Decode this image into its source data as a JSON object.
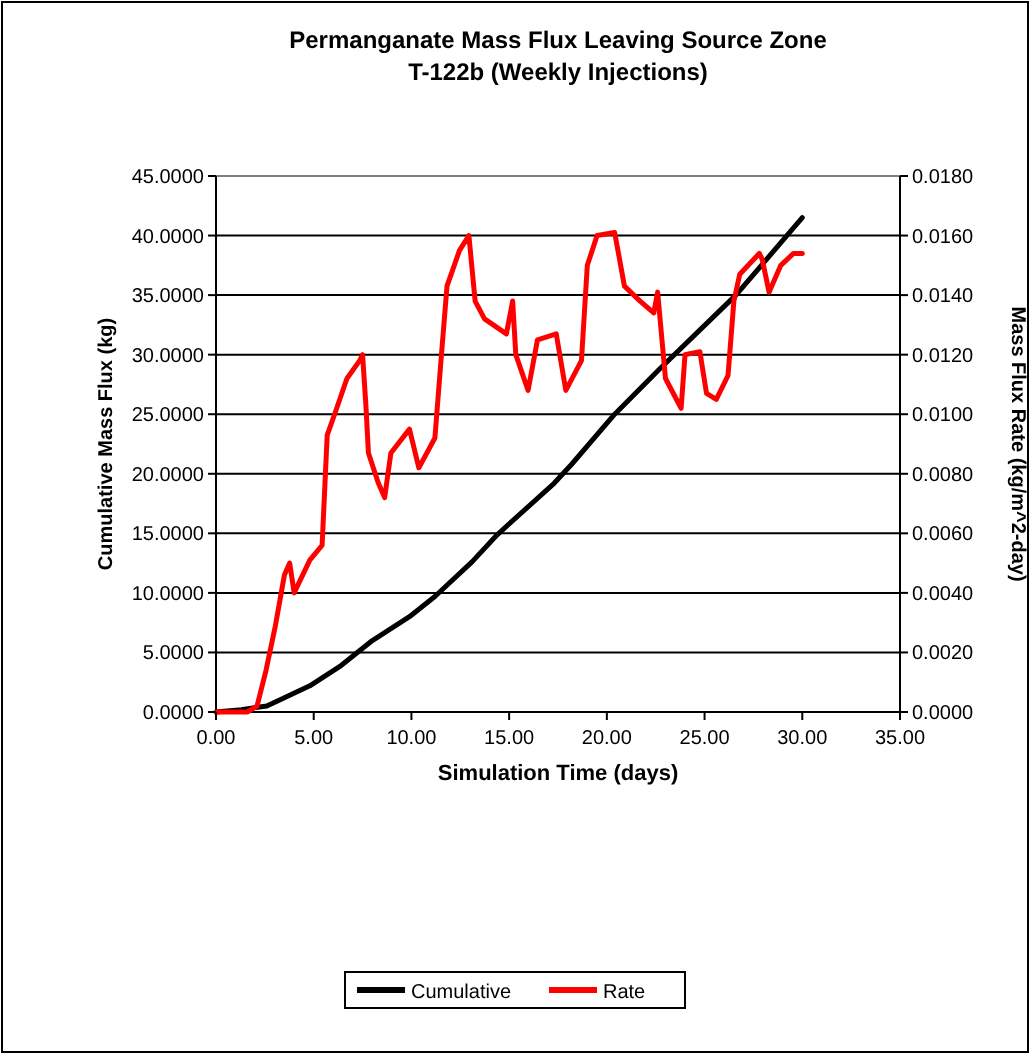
{
  "chart_data": {
    "type": "line",
    "title": "Permanganate Mass Flux Leaving Source Zone",
    "subtitle": "T-122b (Weekly Injections)",
    "xlabel": "Simulation Time (days)",
    "ylabel": "Cumulative Mass Flux (kg)",
    "y2label": "Mass Flux Rate (kg/m^2-day)",
    "xlim": [
      0,
      35
    ],
    "xticks": [
      {
        "value": 0,
        "label": "0.00"
      },
      {
        "value": 5,
        "label": "5.00"
      },
      {
        "value": 10,
        "label": "10.00"
      },
      {
        "value": 15,
        "label": "15.00"
      },
      {
        "value": 20,
        "label": "20.00"
      },
      {
        "value": 25,
        "label": "25.00"
      },
      {
        "value": 30,
        "label": "30.00"
      },
      {
        "value": 35,
        "label": "35.00"
      }
    ],
    "ylim": [
      0,
      45
    ],
    "yticks": [
      {
        "value": 0,
        "label": "0.0000"
      },
      {
        "value": 5,
        "label": "5.0000"
      },
      {
        "value": 10,
        "label": "10.0000"
      },
      {
        "value": 15,
        "label": "15.0000"
      },
      {
        "value": 20,
        "label": "20.0000"
      },
      {
        "value": 25,
        "label": "25.0000"
      },
      {
        "value": 30,
        "label": "30.0000"
      },
      {
        "value": 35,
        "label": "35.0000"
      },
      {
        "value": 40,
        "label": "40.0000"
      },
      {
        "value": 45,
        "label": "45.0000"
      }
    ],
    "y2lim": [
      0,
      0.018
    ],
    "y2ticks": [
      {
        "value": 0,
        "label": "0.0000"
      },
      {
        "value": 0.002,
        "label": "0.0020"
      },
      {
        "value": 0.004,
        "label": "0.0040"
      },
      {
        "value": 0.006,
        "label": "0.0060"
      },
      {
        "value": 0.008,
        "label": "0.0080"
      },
      {
        "value": 0.01,
        "label": "0.0100"
      },
      {
        "value": 0.012,
        "label": "0.0120"
      },
      {
        "value": 0.014,
        "label": "0.0140"
      },
      {
        "value": 0.016,
        "label": "0.0160"
      },
      {
        "value": 0.018,
        "label": "0.0180"
      }
    ],
    "grid": "y",
    "legend": "bottom",
    "marker": "none",
    "line_style": "solid",
    "series": [
      {
        "name": "Cumulative",
        "color": "#000000",
        "x": [
          0,
          1.3,
          2.6,
          3.5,
          4.8,
          6.4,
          8.0,
          9.9,
          11.2,
          13.1,
          14.4,
          17.3,
          18.2,
          20.4,
          22.7,
          26.6,
          30
        ],
        "values": [
          0,
          0.2,
          0.5,
          1.2,
          2.2,
          3.9,
          6.0,
          8.0,
          9.7,
          12.6,
          14.9,
          19.2,
          20.8,
          25,
          28.8,
          35,
          41.5
        ]
      },
      {
        "name": "Rate",
        "color": "#ff0000",
        "axis": "y2",
        "x": [
          0,
          1.6,
          2.1,
          2.56,
          3.04,
          3.5,
          3.77,
          4.0,
          4.8,
          5.43,
          5.69,
          6.07,
          6.7,
          7.35,
          7.5,
          7.67,
          7.8,
          8.3,
          8.63,
          8.95,
          9.9,
          10.38,
          11.2,
          11.5,
          11.82,
          12.46,
          12.94,
          13.26,
          13.74,
          14.86,
          15.18,
          15.34,
          15.97,
          16.45,
          17.41,
          17.9,
          18.7,
          19.0,
          19.5,
          20.4,
          20.9,
          21.7,
          22.4,
          22.6,
          22.75,
          23.0,
          23.8,
          24.0,
          24.76,
          25.1,
          25.6,
          26.2,
          26.5,
          26.8,
          27.8,
          27.95,
          28.3,
          28.9,
          29.55,
          30.0
        ],
        "values": [
          0,
          0,
          0.0002,
          0.0014,
          0.0029,
          0.0046,
          0.005,
          0.004,
          0.0051,
          0.0056,
          0.0093,
          0.01,
          0.0112,
          0.0118,
          0.012,
          0.0103,
          0.0087,
          0.0077,
          0.0072,
          0.0087,
          0.0095,
          0.0082,
          0.0092,
          0.0117,
          0.0143,
          0.0155,
          0.016,
          0.0138,
          0.0132,
          0.0127,
          0.0138,
          0.012,
          0.0108,
          0.0125,
          0.0127,
          0.0108,
          0.0118,
          0.015,
          0.016,
          0.0161,
          0.0143,
          0.0138,
          0.0134,
          0.0141,
          0.013,
          0.0112,
          0.0102,
          0.012,
          0.0121,
          0.0107,
          0.0105,
          0.0113,
          0.0138,
          0.0147,
          0.0154,
          0.0152,
          0.0141,
          0.015,
          0.0154,
          0.0154
        ]
      }
    ]
  }
}
